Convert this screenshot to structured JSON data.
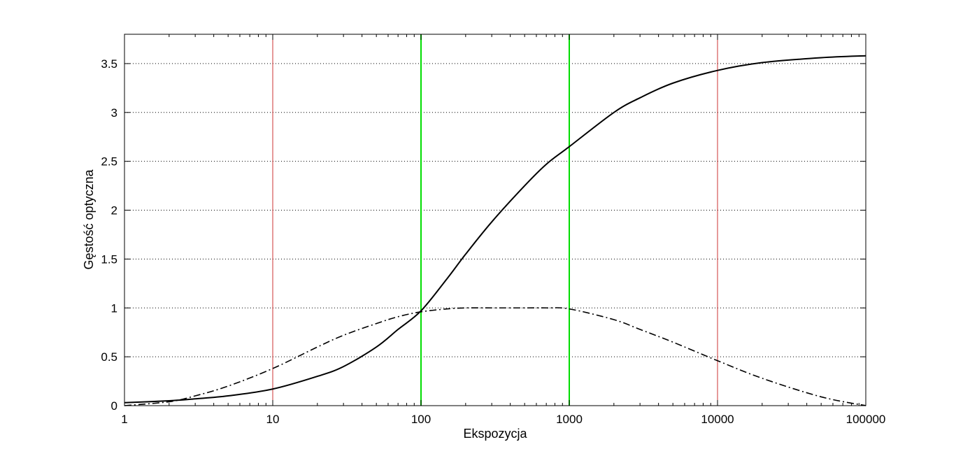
{
  "chart_data": {
    "type": "line",
    "title": "",
    "xlabel": "Ekspozycja",
    "ylabel": "Gęstość optyczna",
    "x_scale": "log",
    "xlim": [
      1,
      100000
    ],
    "ylim": [
      0,
      3.8
    ],
    "grid": "horizontal dotted",
    "x_ticks": [
      {
        "value": 1,
        "label": "1"
      },
      {
        "value": 10,
        "label": "10"
      },
      {
        "value": 100,
        "label": "100"
      },
      {
        "value": 1000,
        "label": "1000"
      },
      {
        "value": 10000,
        "label": "10000"
      },
      {
        "value": 100000,
        "label": "100000"
      }
    ],
    "y_ticks": [
      {
        "value": 0,
        "label": "0"
      },
      {
        "value": 0.5,
        "label": "0.5"
      },
      {
        "value": 1,
        "label": "1"
      },
      {
        "value": 1.5,
        "label": "1.5"
      },
      {
        "value": 2,
        "label": "2"
      },
      {
        "value": 2.5,
        "label": "2.5"
      },
      {
        "value": 3,
        "label": "3"
      },
      {
        "value": 3.5,
        "label": "3.5"
      }
    ],
    "vertical_lines": [
      {
        "x": 10,
        "color": "#cc3333"
      },
      {
        "x": 100,
        "color": "#00dd00"
      },
      {
        "x": 1000,
        "color": "#00dd00"
      },
      {
        "x": 10000,
        "color": "#cc3333"
      }
    ],
    "series": [
      {
        "style": "solid",
        "color": "#000000",
        "x": [
          1,
          2,
          3,
          5,
          10,
          20,
          30,
          50,
          70,
          100,
          150,
          200,
          300,
          500,
          700,
          1000,
          2000,
          3000,
          5000,
          10000,
          20000,
          50000,
          100000
        ],
        "y": [
          0.03,
          0.05,
          0.07,
          0.1,
          0.17,
          0.3,
          0.4,
          0.6,
          0.78,
          0.97,
          1.3,
          1.55,
          1.88,
          2.25,
          2.47,
          2.65,
          3.0,
          3.15,
          3.3,
          3.43,
          3.51,
          3.56,
          3.58
        ]
      },
      {
        "style": "dash-dot",
        "color": "#000000",
        "x": [
          1,
          2,
          3,
          5,
          10,
          20,
          30,
          50,
          70,
          100,
          150,
          200,
          300,
          500,
          700,
          1000,
          2000,
          3000,
          5000,
          10000,
          20000,
          50000,
          100000
        ],
        "y": [
          0.0,
          0.04,
          0.1,
          0.2,
          0.38,
          0.6,
          0.72,
          0.84,
          0.91,
          0.96,
          0.99,
          1.0,
          1.0,
          1.0,
          1.0,
          0.99,
          0.88,
          0.78,
          0.65,
          0.46,
          0.28,
          0.09,
          0.0
        ]
      }
    ]
  }
}
